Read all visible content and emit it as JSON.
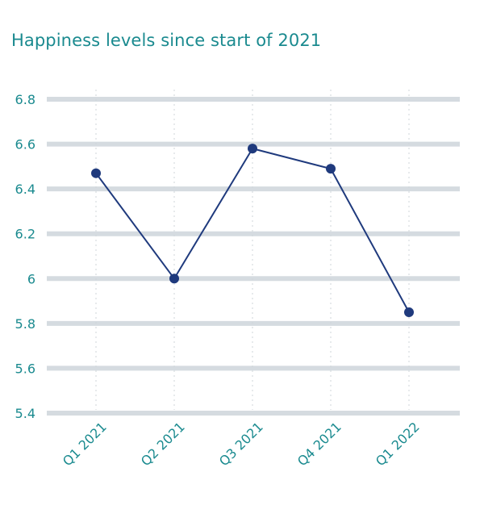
{
  "chart_data": {
    "type": "line",
    "title": "Happiness levels since start of 2021",
    "categories": [
      "Q1 2021",
      "Q2 2021",
      "Q3 2021",
      "Q4 2021",
      "Q1 2022"
    ],
    "series": [
      {
        "values": [
          6.47,
          6.0,
          6.58,
          6.49,
          5.85
        ]
      }
    ],
    "yticks": [
      "6.8",
      "6.6",
      "6.4",
      "6.2",
      "6",
      "5.8",
      "5.6",
      "5.4"
    ],
    "ylim": [
      5.4,
      6.8
    ],
    "grid": true,
    "colors": {
      "line": "#1f3a7d",
      "grid": "#d5dbe0",
      "text": "#1a8a8f",
      "vgrid": "#cfd6da"
    }
  }
}
